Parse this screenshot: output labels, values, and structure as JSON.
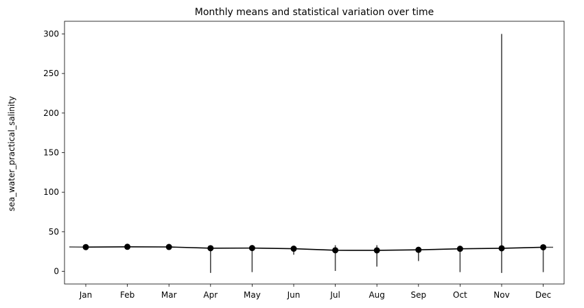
{
  "chart_data": {
    "type": "line",
    "title": "Monthly means and statistical variation over time",
    "xlabel": "",
    "ylabel": "sea_water_practical_salinity",
    "categories": [
      "Jan",
      "Feb",
      "Mar",
      "Apr",
      "May",
      "Jun",
      "Jul",
      "Aug",
      "Sep",
      "Oct",
      "Nov",
      "Dec"
    ],
    "series": [
      {
        "values": [
          30.6,
          31.0,
          30.8,
          29.2,
          29.4,
          28.6,
          26.6,
          26.5,
          27.2,
          28.5,
          29.1,
          30.4
        ]
      }
    ],
    "range_min": [
      28.5,
      29.0,
      29.0,
      -2.0,
      -1.0,
      21.0,
      0.5,
      6.0,
      13.0,
      -1.0,
      -2.0,
      -1.0
    ],
    "range_max": [
      32.0,
      32.5,
      32.0,
      33.0,
      32.0,
      31.0,
      33.0,
      33.0,
      30.0,
      31.0,
      300.0,
      32.0
    ],
    "ylim": [
      -16,
      316
    ],
    "yticks": [
      0,
      50,
      100,
      150,
      200,
      250,
      300
    ],
    "grid": false,
    "colors": {
      "line": "#000000",
      "whisker": "#444444",
      "points": "#000000"
    }
  }
}
